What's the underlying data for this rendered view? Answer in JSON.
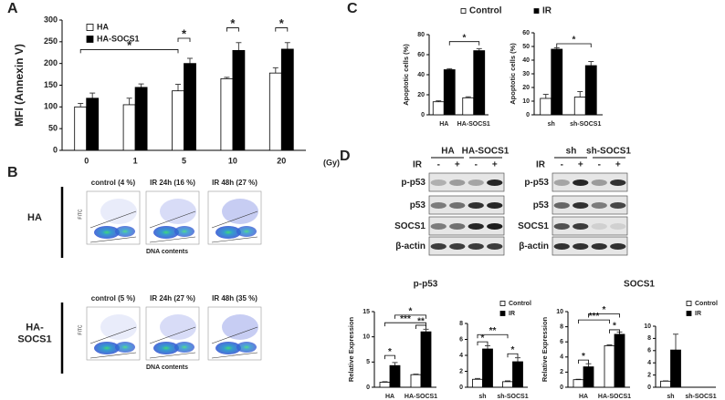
{
  "panel_labels": [
    "A",
    "B",
    "C",
    "D"
  ],
  "chart_data": [
    {
      "type": "bar",
      "ylabel": "MFI (Annexin V)",
      "xlabel": "(Gy)",
      "categories": [
        "0",
        "1",
        "5",
        "10",
        "20"
      ],
      "series": [
        {
          "name": "HA",
          "color": "#ffffff",
          "values": [
            100,
            105,
            137,
            165,
            178
          ],
          "errors": [
            8,
            15,
            15,
            3,
            12
          ]
        },
        {
          "name": "HA-SOCS1",
          "color": "#000000",
          "values": [
            120,
            145,
            200,
            230,
            233
          ],
          "errors": [
            12,
            8,
            12,
            18,
            15
          ]
        }
      ],
      "ylim": [
        0,
        300
      ],
      "yticks": [
        0,
        50,
        100,
        150,
        200,
        250,
        300
      ],
      "legend": "upper left",
      "annotations": [
        "*",
        "*",
        "*",
        "*"
      ]
    },
    {
      "type": "bar",
      "ylabel": "Apoptotic cells (%)",
      "categories": [
        "HA",
        "HA-SOCS1"
      ],
      "series": [
        {
          "name": "Control",
          "color": "#ffffff",
          "values": [
            13,
            17
          ],
          "errors": [
            1,
            1
          ]
        },
        {
          "name": "IR",
          "color": "#000000",
          "values": [
            45,
            64
          ],
          "errors": [
            1,
            2
          ]
        }
      ],
      "ylim": [
        0,
        80
      ],
      "yticks": [
        0,
        20,
        40,
        60,
        80
      ],
      "legend": "above",
      "annotations": [
        "*"
      ]
    },
    {
      "type": "bar",
      "ylabel": "Apoptotic cells (%)",
      "categories": [
        "sh",
        "sh-SOCS1"
      ],
      "series": [
        {
          "color": "#ffffff",
          "values": [
            12,
            13
          ],
          "errors": [
            3,
            4
          ]
        },
        {
          "color": "#000000",
          "values": [
            48,
            36
          ],
          "errors": [
            1,
            3
          ]
        }
      ],
      "ylim": [
        0,
        60
      ],
      "yticks": [
        0,
        10,
        20,
        30,
        40,
        50,
        60
      ],
      "annotations": [
        "*"
      ]
    },
    {
      "type": "bar",
      "title": "p-p53",
      "ylabel": "Relative Expression",
      "categories": [
        "HA",
        "HA-SOCS1"
      ],
      "series": [
        {
          "color": "#ffffff",
          "values": [
            1,
            2.5
          ],
          "errors": [
            0.1,
            0.1
          ]
        },
        {
          "color": "#000000",
          "values": [
            4.3,
            11
          ],
          "errors": [
            0.6,
            0.5
          ]
        }
      ],
      "ylim": [
        0,
        15
      ],
      "yticks": [
        0,
        5,
        10,
        15
      ],
      "annotations": [
        "*",
        "***",
        "*",
        "**"
      ]
    },
    {
      "type": "bar",
      "categories": [
        "sh",
        "sh-SOCS1"
      ],
      "series": [
        {
          "name": "Control",
          "color": "#ffffff",
          "values": [
            1,
            0.7
          ],
          "errors": [
            0.1,
            0.1
          ]
        },
        {
          "name": "IR",
          "color": "#000000",
          "values": [
            4.8,
            3.2
          ],
          "errors": [
            0.4,
            0.5
          ]
        }
      ],
      "ylim": [
        0,
        8
      ],
      "yticks": [
        0,
        2,
        4,
        6,
        8
      ],
      "legend": "upper right",
      "annotations": [
        "**",
        "*",
        "*"
      ]
    },
    {
      "type": "bar",
      "title": "SOCS1",
      "ylabel": "Relative Expression",
      "categories": [
        "HA",
        "HA-SOCS1"
      ],
      "series": [
        {
          "color": "#ffffff",
          "values": [
            1,
            5.5
          ],
          "errors": [
            0.05,
            0.1
          ]
        },
        {
          "color": "#000000",
          "values": [
            2.7,
            7
          ],
          "errors": [
            0.4,
            0.3
          ]
        }
      ],
      "ylim": [
        0,
        10
      ],
      "yticks": [
        0,
        2,
        4,
        6,
        8,
        10
      ],
      "annotations": [
        "*",
        "***",
        "*",
        "*"
      ]
    },
    {
      "type": "bar",
      "categories": [
        "sh",
        "sh-SOCS1"
      ],
      "series": [
        {
          "name": "Control",
          "color": "#ffffff",
          "values": [
            1,
            null
          ],
          "errors": [
            0.05,
            null
          ]
        },
        {
          "name": "IR",
          "color": "#000000",
          "values": [
            6.1,
            null
          ],
          "errors": [
            2.6,
            null
          ]
        }
      ],
      "ylim": [
        0,
        10
      ],
      "yticks": [
        0,
        2,
        4,
        6,
        8,
        10
      ],
      "legend": "upper right"
    }
  ],
  "flow": {
    "x_label": "DNA contents",
    "y_label": "FITC",
    "rows": [
      {
        "label": [
          "HA"
        ],
        "panels": [
          "control (4 %)",
          "IR 24h (16 %)",
          "IR 48h (27 %)"
        ]
      },
      {
        "label": [
          "HA-",
          "SOCS1"
        ],
        "panels": [
          "control (5 %)",
          "IR 24h (27 %)",
          "IR 48h (35 %)"
        ]
      }
    ]
  },
  "blots": [
    {
      "groups": [
        "HA",
        "HA-SOCS1"
      ],
      "treatment": "IR",
      "lanes": [
        "-",
        "+",
        "-",
        "+"
      ],
      "rows": [
        "p-p53",
        "p53",
        "SOCS1",
        "β-actin"
      ]
    },
    {
      "groups": [
        "sh",
        "sh-SOCS1"
      ],
      "treatment": "IR",
      "lanes": [
        "-",
        "+",
        "-",
        "+"
      ],
      "rows": [
        "p-p53",
        "p53",
        "SOCS1",
        "β-actin"
      ]
    }
  ]
}
